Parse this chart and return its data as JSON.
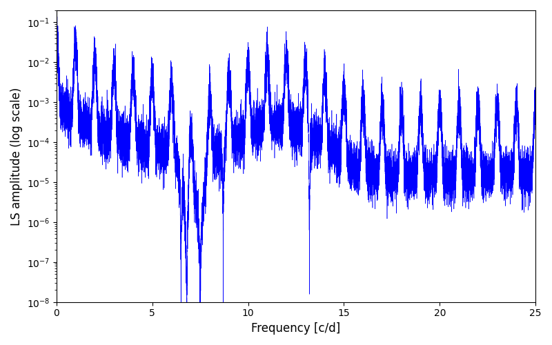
{
  "xlabel": "Frequency [c/d]",
  "ylabel": "LS amplitude (log scale)",
  "xlim": [
    0,
    25
  ],
  "ylim": [
    1e-08,
    0.2
  ],
  "line_color": "#0000ff",
  "background_color": "#ffffff",
  "figsize": [
    8.0,
    5.0
  ],
  "dpi": 100,
  "xticks": [
    0,
    5,
    10,
    15,
    20,
    25
  ]
}
